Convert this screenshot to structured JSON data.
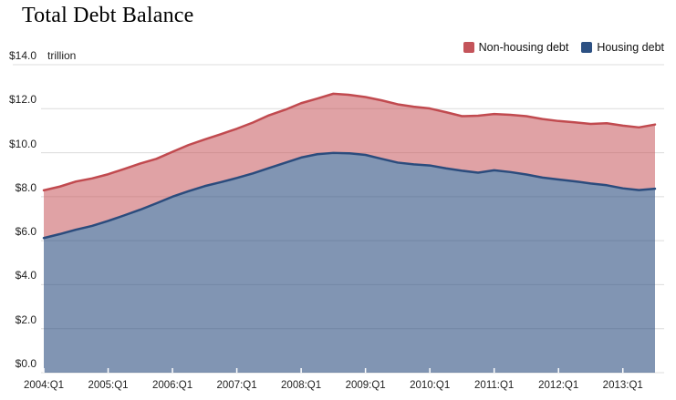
{
  "title": "Total Debt Balance",
  "y_axis": {
    "unit_label": "trillion",
    "tick_labels": [
      "$14.0",
      "$12.0",
      "$10.0",
      "$8.0",
      "$6.0",
      "$4.0",
      "$2.0",
      "$0.0"
    ],
    "tick_values": [
      14,
      12,
      10,
      8,
      6,
      4,
      2,
      0
    ]
  },
  "x_axis": {
    "tick_labels": [
      "2004:Q1",
      "2005:Q1",
      "2006:Q1",
      "2007:Q1",
      "2008:Q1",
      "2009:Q1",
      "2010:Q1",
      "2011:Q1",
      "2012:Q1",
      "2013:Q1"
    ]
  },
  "legend": {
    "items": [
      {
        "label": "Non-housing debt",
        "color": "#c4545a"
      },
      {
        "label": "Housing debt",
        "color": "#2d5183"
      }
    ]
  },
  "colors": {
    "housing_fill": "rgba(45,78,128,0.60)",
    "housing_stroke": "#2b4c7d",
    "nonhousing_fill": "rgba(196,77,82,0.52)",
    "nonhousing_stroke": "#c14a4f",
    "gridline": "#dcdcdc",
    "tick_mark": "#ffffff",
    "text": "#222222"
  },
  "chart_data": {
    "type": "area",
    "stacked": true,
    "title": "Total Debt Balance",
    "ylabel": "$ trillion",
    "ylim": [
      0,
      14
    ],
    "grid": true,
    "legend_position": "top-right",
    "x": [
      "2004:Q1",
      "2004:Q2",
      "2004:Q3",
      "2004:Q4",
      "2005:Q1",
      "2005:Q2",
      "2005:Q3",
      "2005:Q4",
      "2006:Q1",
      "2006:Q2",
      "2006:Q3",
      "2006:Q4",
      "2007:Q1",
      "2007:Q2",
      "2007:Q3",
      "2007:Q4",
      "2008:Q1",
      "2008:Q2",
      "2008:Q3",
      "2008:Q4",
      "2009:Q1",
      "2009:Q2",
      "2009:Q3",
      "2009:Q4",
      "2010:Q1",
      "2010:Q2",
      "2010:Q3",
      "2010:Q4",
      "2011:Q1",
      "2011:Q2",
      "2011:Q3",
      "2011:Q4",
      "2012:Q1",
      "2012:Q2",
      "2012:Q3",
      "2012:Q4",
      "2013:Q1",
      "2013:Q2",
      "2013:Q3"
    ],
    "x_tick_labels": [
      "2004:Q1",
      "2005:Q1",
      "2006:Q1",
      "2007:Q1",
      "2008:Q1",
      "2009:Q1",
      "2010:Q1",
      "2011:Q1",
      "2012:Q1",
      "2013:Q1"
    ],
    "series": [
      {
        "name": "Housing debt",
        "values": [
          6.12,
          6.3,
          6.5,
          6.67,
          6.9,
          7.15,
          7.41,
          7.7,
          8.0,
          8.25,
          8.48,
          8.66,
          8.85,
          9.06,
          9.3,
          9.54,
          9.78,
          9.93,
          9.99,
          9.97,
          9.9,
          9.72,
          9.55,
          9.47,
          9.42,
          9.29,
          9.18,
          9.09,
          9.2,
          9.12,
          9.01,
          8.87,
          8.78,
          8.7,
          8.6,
          8.52,
          8.38,
          8.3,
          8.36
        ]
      },
      {
        "name": "Non-housing debt",
        "values": [
          2.17,
          2.16,
          2.19,
          2.16,
          2.12,
          2.11,
          2.1,
          2.02,
          2.04,
          2.1,
          2.12,
          2.18,
          2.24,
          2.31,
          2.4,
          2.41,
          2.47,
          2.53,
          2.69,
          2.66,
          2.63,
          2.66,
          2.65,
          2.62,
          2.59,
          2.55,
          2.48,
          2.59,
          2.56,
          2.6,
          2.65,
          2.66,
          2.66,
          2.68,
          2.71,
          2.82,
          2.85,
          2.85,
          2.92
        ]
      }
    ],
    "totals": [
      8.29,
      8.46,
      8.69,
      8.83,
      9.02,
      9.26,
      9.51,
      9.72,
      10.04,
      10.35,
      10.6,
      10.84,
      11.09,
      11.37,
      11.7,
      11.95,
      12.25,
      12.46,
      12.68,
      12.63,
      12.53,
      12.38,
      12.2,
      12.09,
      12.01,
      11.84,
      11.66,
      11.68,
      11.76,
      11.72,
      11.66,
      11.53,
      11.44,
      11.38,
      11.31,
      11.34,
      11.23,
      11.15,
      11.28
    ]
  }
}
